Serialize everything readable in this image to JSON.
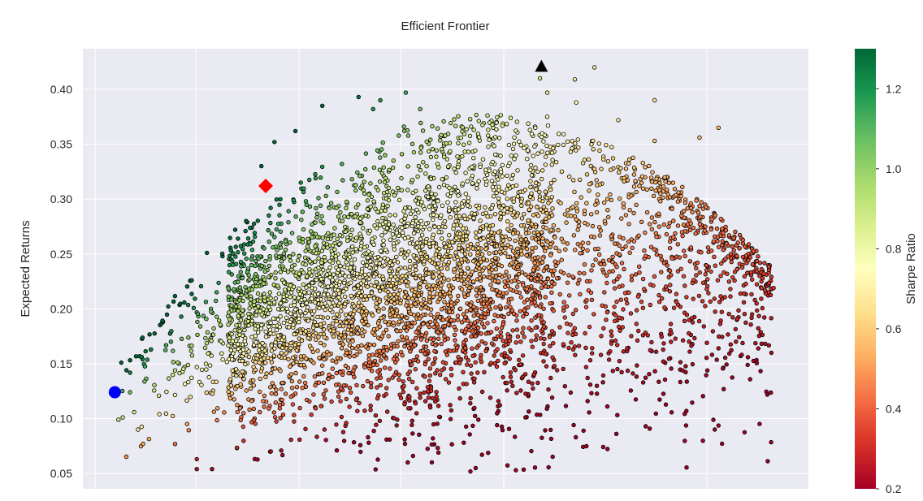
{
  "chart_data": {
    "type": "scatter",
    "title": "Efficient Frontier",
    "xlabel": "",
    "ylabel": "Expected Returns",
    "ylim": [
      0.036,
      0.437
    ],
    "xlim": [
      0,
      1
    ],
    "yticks": [
      0.05,
      0.1,
      0.15,
      0.2,
      0.25,
      0.3,
      0.35,
      0.4
    ],
    "ytick_labels": [
      "0.05",
      "0.10",
      "0.15",
      "0.20",
      "0.25",
      "0.30",
      "0.35",
      "0.40"
    ],
    "x_gridlines": [
      0.017,
      0.156,
      0.298,
      0.438,
      0.58,
      0.86
    ],
    "grid": true,
    "colormap": "RdYlGn",
    "colorbar": {
      "label": "Sharpe Ratio",
      "min": 0.2,
      "max": 1.3,
      "ticks": [
        0.2,
        0.4,
        0.6,
        0.8,
        1.0,
        1.2
      ],
      "tick_labels": [
        "0.2",
        "0.4",
        "0.6",
        "0.8",
        "1.0",
        "1.2"
      ]
    },
    "series": [
      {
        "marker": "circle",
        "point_count": 4500,
        "points": [
          [
            0.053,
            0.151
          ],
          [
            0.06,
            0.144
          ],
          [
            0.065,
            0.124
          ],
          [
            0.055,
            0.101
          ],
          [
            0.049,
            0.099
          ],
          [
            0.076,
            0.09
          ],
          [
            0.083,
            0.077
          ],
          [
            0.15,
            0.226
          ],
          [
            0.171,
            0.251
          ],
          [
            0.21,
            0.272
          ],
          [
            0.225,
            0.28
          ],
          [
            0.246,
            0.33
          ],
          [
            0.264,
            0.352
          ],
          [
            0.293,
            0.362
          ],
          [
            0.33,
            0.385
          ],
          [
            0.38,
            0.393
          ],
          [
            0.4,
            0.382
          ],
          [
            0.41,
            0.39
          ],
          [
            0.445,
            0.397
          ],
          [
            0.465,
            0.382
          ],
          [
            0.56,
            0.354
          ],
          [
            0.63,
            0.41
          ],
          [
            0.64,
            0.397
          ],
          [
            0.64,
            0.375
          ],
          [
            0.678,
            0.409
          ],
          [
            0.68,
            0.388
          ],
          [
            0.705,
            0.42
          ],
          [
            0.738,
            0.372
          ],
          [
            0.788,
            0.39
          ],
          [
            0.788,
            0.353
          ],
          [
            0.796,
            0.305
          ],
          [
            0.85,
            0.356
          ],
          [
            0.876,
            0.365
          ],
          [
            0.838,
            0.296
          ],
          [
            0.854,
            0.207
          ],
          [
            0.875,
            0.226
          ],
          [
            0.952,
            0.219
          ],
          [
            0.86,
            0.169
          ],
          [
            0.876,
            0.164
          ],
          [
            0.8,
            0.152
          ],
          [
            0.772,
            0.176
          ],
          [
            0.734,
            0.171
          ],
          [
            0.75,
            0.164
          ],
          [
            0.61,
            0.101
          ],
          [
            0.69,
            0.089
          ],
          [
            0.55,
            0.067
          ],
          [
            0.49,
            0.069
          ],
          [
            0.394,
            0.078
          ],
          [
            0.333,
            0.09
          ],
          [
            0.178,
            0.054
          ],
          [
            0.157,
            0.063
          ],
          [
            0.157,
            0.054
          ],
          [
            0.259,
            0.07
          ],
          [
            0.35,
            0.071
          ],
          [
            0.444,
            0.077
          ],
          [
            0.455,
            0.066
          ],
          [
            0.525,
            0.078
          ],
          [
            0.545,
            0.099
          ]
        ]
      }
    ],
    "special_markers": [
      {
        "name": "max-sharpe",
        "shape": "diamond",
        "color": "#ff0000",
        "x": 0.252,
        "y": 0.312
      },
      {
        "name": "min-volatility",
        "shape": "circle",
        "color": "#0000ff",
        "x": 0.044,
        "y": 0.124
      },
      {
        "name": "max-return",
        "shape": "triangle",
        "color": "#000000",
        "x": 0.632,
        "y": 0.421
      }
    ]
  }
}
